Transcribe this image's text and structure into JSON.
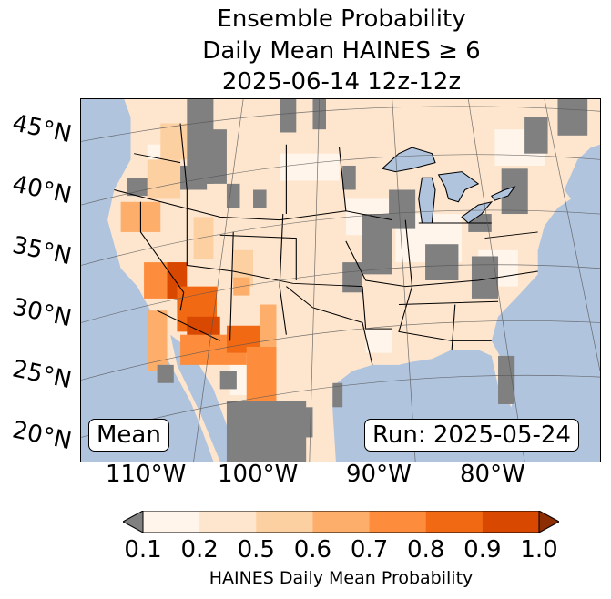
{
  "title": {
    "line1": "Ensemble Probability",
    "line2": "Daily Mean HAINES ≥ 6",
    "line3": "2025-06-14 12z-12z"
  },
  "map": {
    "lat_labels": [
      "45°N",
      "40°N",
      "35°N",
      "30°N",
      "25°N",
      "20°N"
    ],
    "lon_labels": [
      "110°W",
      "100°W",
      "90°W",
      "80°W"
    ],
    "stat_label": "Mean",
    "run_label": "Run: 2025-05-24",
    "colors": {
      "ocean": "#b0c4de",
      "under": "#808080",
      "lakes": "#b0c4de"
    }
  },
  "colorbar": {
    "ticks": [
      "0.1",
      "0.2",
      "0.5",
      "0.6",
      "0.7",
      "0.8",
      "0.9",
      "1.0"
    ],
    "label": "HAINES Daily Mean Probability",
    "colors": [
      "#fff5eb",
      "#fee6ce",
      "#fdd0a2",
      "#fdae6b",
      "#fd8d3c",
      "#f16913",
      "#d94801"
    ],
    "under_color": "#808080",
    "over_color": "#8c2d04"
  }
}
